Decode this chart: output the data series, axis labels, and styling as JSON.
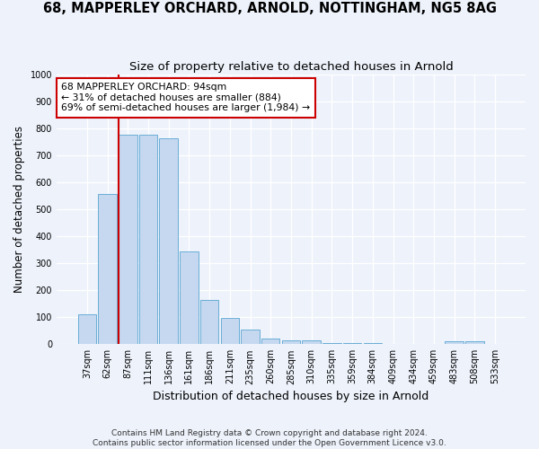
{
  "title1": "68, MAPPERLEY ORCHARD, ARNOLD, NOTTINGHAM, NG5 8AG",
  "title2": "Size of property relative to detached houses in Arnold",
  "xlabel": "Distribution of detached houses by size in Arnold",
  "ylabel": "Number of detached properties",
  "categories": [
    "37sqm",
    "62sqm",
    "87sqm",
    "111sqm",
    "136sqm",
    "161sqm",
    "186sqm",
    "211sqm",
    "235sqm",
    "260sqm",
    "285sqm",
    "310sqm",
    "335sqm",
    "359sqm",
    "384sqm",
    "409sqm",
    "434sqm",
    "459sqm",
    "483sqm",
    "508sqm",
    "533sqm"
  ],
  "values": [
    112,
    557,
    778,
    778,
    763,
    343,
    165,
    97,
    55,
    20,
    14,
    14,
    3,
    3,
    3,
    0,
    0,
    0,
    10,
    10,
    0
  ],
  "bar_color": "#c5d8f0",
  "bar_edge_color": "#6aaed6",
  "vline_color": "#cc0000",
  "annotation_text": "68 MAPPERLEY ORCHARD: 94sqm\n← 31% of detached houses are smaller (884)\n69% of semi-detached houses are larger (1,984) →",
  "annotation_box_color": "#ffffff",
  "annotation_box_edge": "#cc0000",
  "footnote_line1": "Contains HM Land Registry data © Crown copyright and database right 2024.",
  "footnote_line2": "Contains public sector information licensed under the Open Government Licence v3.0.",
  "ylim": [
    0,
    1000
  ],
  "yticks": [
    0,
    100,
    200,
    300,
    400,
    500,
    600,
    700,
    800,
    900,
    1000
  ],
  "bg_color": "#edf2fb",
  "grid_color": "#ffffff",
  "title1_fontsize": 10.5,
  "title2_fontsize": 9.5,
  "tick_fontsize": 7,
  "ylabel_fontsize": 8.5,
  "xlabel_fontsize": 9
}
